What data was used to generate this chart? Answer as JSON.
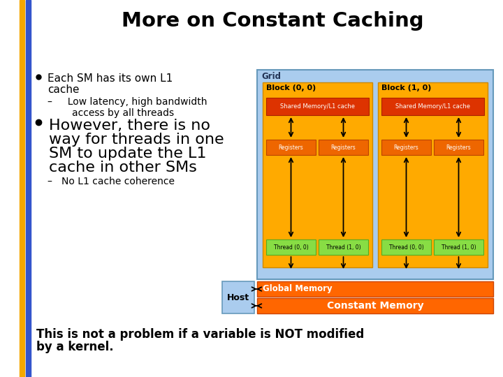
{
  "title": "More on Constant Caching",
  "bg_color": "#ffffff",
  "orange_bar_color": "#f5a800",
  "blue_bar_color": "#3355cc",
  "bullet1_line1": "Each SM has its own L1",
  "bullet1_line2": "cache",
  "bullet1_sub1": "–     Low latency, high bandwidth",
  "bullet1_sub2": "        access by all threads",
  "bullet2_line1": "However, there is no",
  "bullet2_line2": "way for threads in one",
  "bullet2_line3": "SM to update the L1",
  "bullet2_line4": "cache in other SMs",
  "bullet2_sub": "–   No L1 cache coherence",
  "footer_line1": "This is not a problem if a variable is NOT modified",
  "footer_line2": "by a kernel.",
  "grid_color": "#aaccee",
  "grid_border": "#6699bb",
  "block_color": "#ffaa00",
  "block_border": "#cc8800",
  "shared_color": "#dd3300",
  "shared_border": "#aa2200",
  "register_color": "#ee6600",
  "register_border": "#bb4400",
  "thread_color": "#88dd44",
  "thread_border": "#55aa22",
  "global_color": "#ff6600",
  "global_border": "#cc4400",
  "constant_color": "#ff6600",
  "constant_border": "#cc4400",
  "host_color": "#aaccee",
  "host_border": "#6699bb",
  "grid_label": "Grid",
  "block0_label": "Block (0, 0)",
  "block1_label": "Block (1, 0)",
  "shared_label": "Shared Memory/L1 cache",
  "register_label": "Registers",
  "thread0_label": "Thread (0, 0)",
  "thread1_label": "Thread (1, 0)",
  "global_label": "Global Memory",
  "constant_label": "Constant Memory",
  "host_label": "Host"
}
